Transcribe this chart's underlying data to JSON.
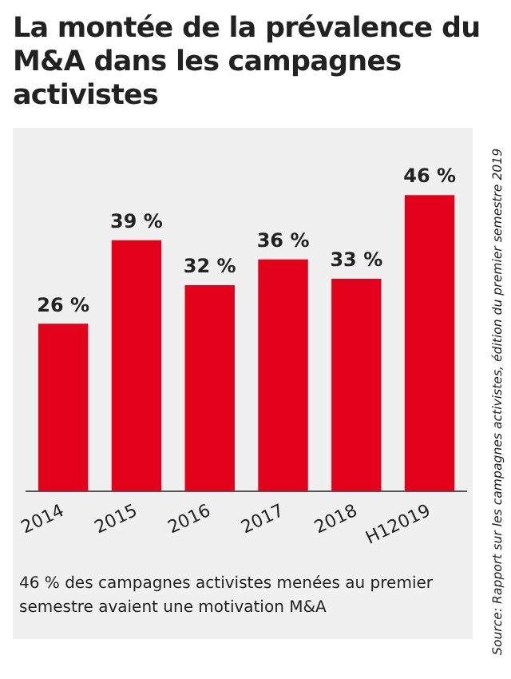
{
  "chart_data": {
    "type": "bar",
    "title": "La montée de la prévalence du M&A dans les campagnes activistes",
    "categories": [
      "2014",
      "2015",
      "2016",
      "2017",
      "2018",
      "H12019"
    ],
    "values": [
      26,
      39,
      32,
      36,
      33,
      46
    ],
    "value_labels": [
      "26 %",
      "39 %",
      "32 %",
      "36 %",
      "33 %",
      "46 %"
    ],
    "color": "#e2001a",
    "grid": false,
    "legend": false,
    "annotations": [
      "46 % des campagnes activistes menées au premier semestre avaient une motivation M&A",
      "Source: Rapport sur les campagnes activistes, édition du premier semestre 2019"
    ]
  }
}
